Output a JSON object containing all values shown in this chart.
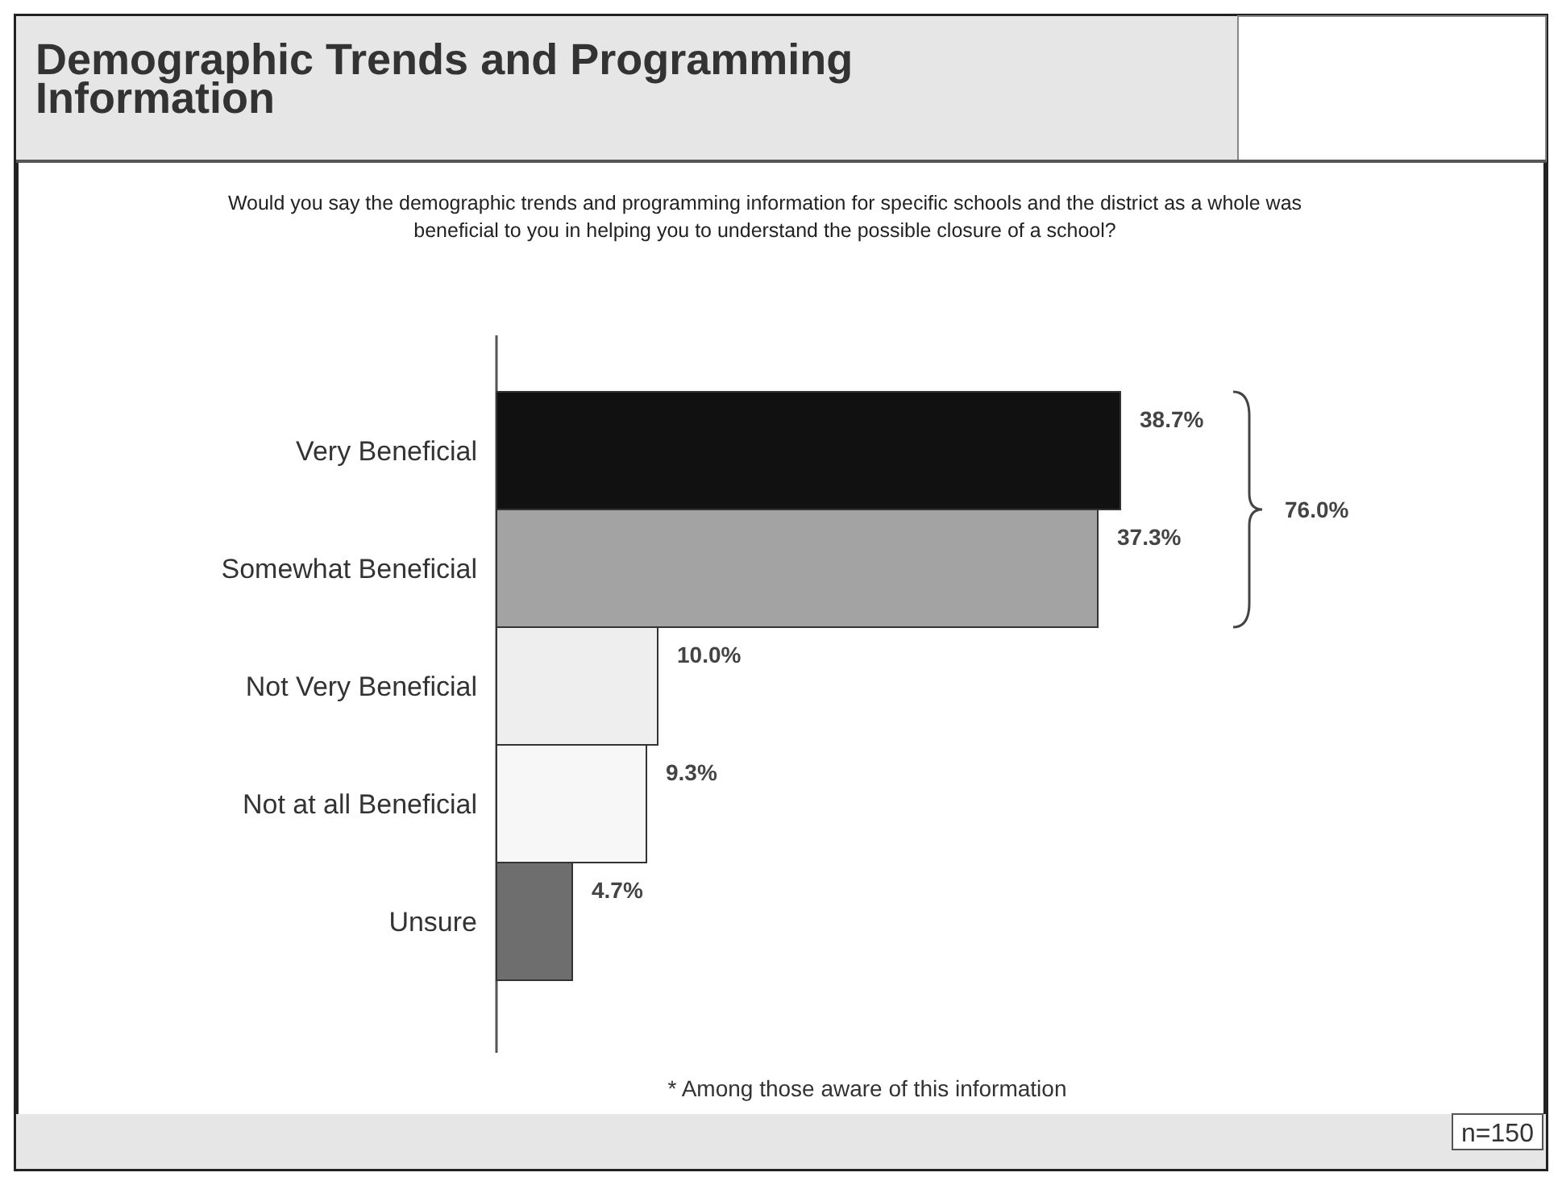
{
  "chart_data": {
    "type": "bar",
    "orientation": "horizontal",
    "title": "Demographic Trends and Programming Information",
    "subtitle": "Would you say the demographic trends and programming information for specific schools and the district as a whole was beneficial to you in helping you to understand the possible closure of a school?",
    "categories": [
      "Very Beneficial",
      "Somewhat Beneficial",
      "Not Very Beneficial",
      "Not at all Beneficial",
      "Unsure"
    ],
    "values": [
      38.7,
      37.3,
      10.0,
      9.3,
      4.7
    ],
    "colors": [
      "#111111",
      "#a3a3a3",
      "#eeeeee",
      "#f7f7f7",
      "#6e6e6e"
    ],
    "value_labels": [
      "38.7%",
      "37.3%",
      "10.0%",
      "9.3%",
      "4.7%"
    ],
    "tick_labels": "y",
    "annotations": [
      "76.0%",
      "* Among those aware of this information",
      "n=150"
    ]
  }
}
